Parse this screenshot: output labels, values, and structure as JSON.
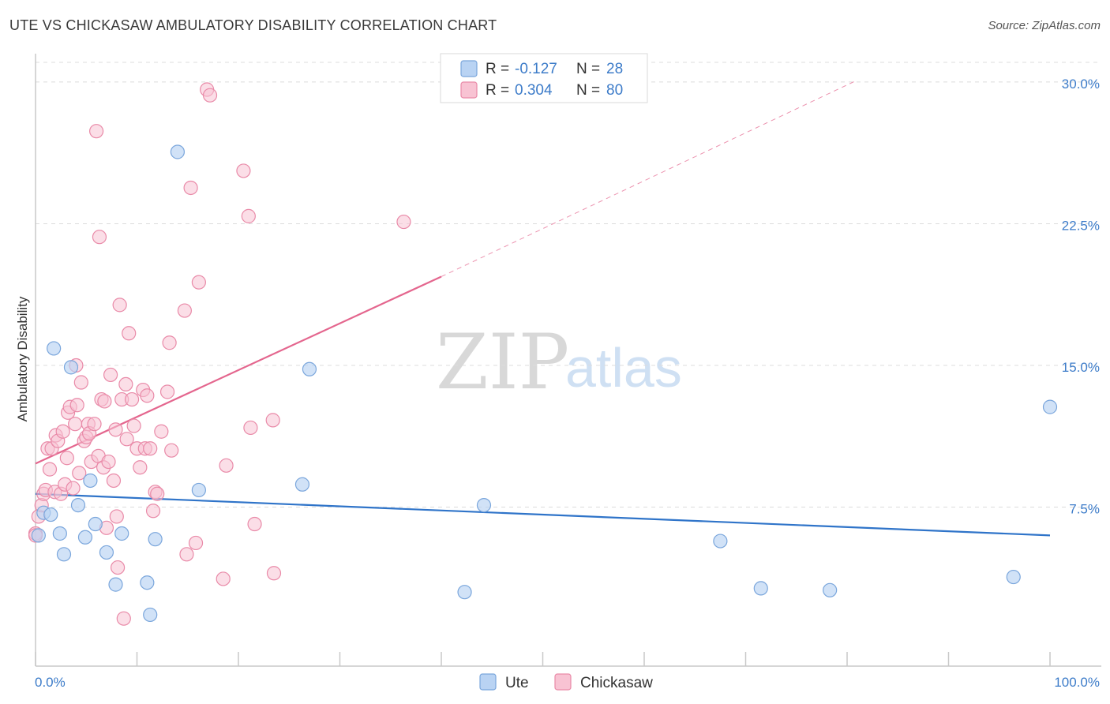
{
  "title": "UTE VS CHICKASAW AMBULATORY DISABILITY CORRELATION CHART",
  "source": "Source: ZipAtlas.com",
  "watermark": {
    "zip": "ZIP",
    "atlas": "atlas"
  },
  "legend": {
    "r_label": "R =",
    "n_label": "N =",
    "entries": [
      {
        "name": "Ute",
        "r": "-0.127",
        "n": "28"
      },
      {
        "name": "Chickasaw",
        "r": "0.304",
        "n": "80"
      }
    ]
  },
  "colors": {
    "ute_fill": "#b9d3f3",
    "ute_stroke": "#7aa6dc",
    "ute_line": "#2f74c9",
    "chickasaw_fill": "#f8c3d3",
    "chickasaw_stroke": "#e98aa8",
    "chickasaw_line": "#e4668e",
    "grid": "#dcdcdc",
    "axis": "#c8c8c8"
  },
  "chart_data": {
    "type": "scatter",
    "title": "UTE VS CHICKASAW AMBULATORY DISABILITY CORRELATION CHART",
    "xlabel": "",
    "ylabel": "Ambulatory Disability",
    "xlim": [
      0,
      100
    ],
    "ylim": [
      0,
      31
    ],
    "x_tick_labels": [
      {
        "value": 0,
        "label": "0.0%"
      },
      {
        "value": 100,
        "label": "100.0%"
      }
    ],
    "y_ticks": [
      {
        "value": 7.5,
        "label": "7.5%"
      },
      {
        "value": 15.0,
        "label": "15.0%"
      },
      {
        "value": 22.5,
        "label": "22.5%"
      },
      {
        "value": 30.0,
        "label": "30.0%"
      }
    ],
    "series": [
      {
        "name": "Ute",
        "trend": {
          "x0": 0,
          "y0": 8.2,
          "x1": 100,
          "y1": 6.0
        },
        "points": [
          [
            0.3,
            6.0
          ],
          [
            0.8,
            7.2
          ],
          [
            1.5,
            7.1
          ],
          [
            1.8,
            15.9
          ],
          [
            2.4,
            6.1
          ],
          [
            2.8,
            5.0
          ],
          [
            3.5,
            14.9
          ],
          [
            4.2,
            7.6
          ],
          [
            4.9,
            5.9
          ],
          [
            5.4,
            8.9
          ],
          [
            5.9,
            6.6
          ],
          [
            7.0,
            5.1
          ],
          [
            7.9,
            3.4
          ],
          [
            8.5,
            6.1
          ],
          [
            11.0,
            3.5
          ],
          [
            11.3,
            1.8
          ],
          [
            11.8,
            5.8
          ],
          [
            14.0,
            26.3
          ],
          [
            16.1,
            8.4
          ],
          [
            26.3,
            8.7
          ],
          [
            27.0,
            14.8
          ],
          [
            42.3,
            3.0
          ],
          [
            44.2,
            7.6
          ],
          [
            67.5,
            5.7
          ],
          [
            71.5,
            3.2
          ],
          [
            78.3,
            3.1
          ],
          [
            96.4,
            3.8
          ],
          [
            100.0,
            12.8
          ]
        ]
      },
      {
        "name": "Chickasaw",
        "trend": {
          "x0": 0,
          "y0": 9.8,
          "x1": 40,
          "y1": 19.7,
          "dash_to_x": 81,
          "dash_to_y": 30.1
        },
        "points": [
          [
            0.0,
            6.1
          ],
          [
            0.3,
            7.0
          ],
          [
            0.6,
            7.6
          ],
          [
            0.8,
            8.2
          ],
          [
            1.0,
            8.4
          ],
          [
            1.2,
            10.6
          ],
          [
            1.4,
            9.5
          ],
          [
            1.6,
            10.6
          ],
          [
            1.9,
            8.3
          ],
          [
            2.0,
            11.3
          ],
          [
            2.2,
            11.0
          ],
          [
            2.5,
            8.2
          ],
          [
            2.7,
            11.5
          ],
          [
            2.9,
            8.7
          ],
          [
            3.1,
            10.1
          ],
          [
            3.2,
            12.5
          ],
          [
            3.4,
            12.8
          ],
          [
            3.7,
            8.5
          ],
          [
            3.9,
            11.9
          ],
          [
            4.0,
            15.0
          ],
          [
            4.1,
            12.9
          ],
          [
            4.3,
            9.3
          ],
          [
            4.5,
            14.1
          ],
          [
            4.8,
            11.0
          ],
          [
            5.0,
            11.2
          ],
          [
            5.2,
            11.9
          ],
          [
            5.3,
            11.4
          ],
          [
            5.5,
            9.9
          ],
          [
            5.8,
            11.9
          ],
          [
            6.0,
            27.4
          ],
          [
            6.2,
            10.2
          ],
          [
            6.3,
            21.8
          ],
          [
            6.5,
            13.2
          ],
          [
            6.7,
            9.6
          ],
          [
            6.8,
            13.1
          ],
          [
            7.0,
            6.4
          ],
          [
            7.2,
            9.9
          ],
          [
            7.4,
            14.5
          ],
          [
            7.7,
            8.9
          ],
          [
            7.9,
            11.6
          ],
          [
            8.0,
            7.0
          ],
          [
            8.1,
            4.3
          ],
          [
            8.3,
            18.2
          ],
          [
            8.5,
            13.2
          ],
          [
            8.7,
            1.6
          ],
          [
            8.9,
            14.0
          ],
          [
            9.0,
            11.1
          ],
          [
            9.2,
            16.7
          ],
          [
            9.5,
            13.2
          ],
          [
            9.7,
            11.8
          ],
          [
            10.0,
            10.6
          ],
          [
            10.3,
            9.6
          ],
          [
            10.6,
            13.7
          ],
          [
            10.8,
            10.6
          ],
          [
            11.0,
            13.4
          ],
          [
            11.3,
            10.6
          ],
          [
            11.6,
            7.3
          ],
          [
            11.8,
            8.3
          ],
          [
            12.0,
            8.2
          ],
          [
            12.4,
            11.5
          ],
          [
            13.0,
            13.6
          ],
          [
            13.2,
            16.2
          ],
          [
            13.4,
            10.5
          ],
          [
            14.7,
            17.9
          ],
          [
            14.9,
            5.0
          ],
          [
            15.3,
            24.4
          ],
          [
            15.8,
            5.6
          ],
          [
            16.1,
            19.4
          ],
          [
            16.9,
            29.6
          ],
          [
            17.2,
            29.3
          ],
          [
            18.5,
            3.7
          ],
          [
            18.8,
            9.7
          ],
          [
            20.5,
            25.3
          ],
          [
            21.0,
            22.9
          ],
          [
            21.2,
            11.7
          ],
          [
            21.6,
            6.6
          ],
          [
            23.4,
            12.1
          ],
          [
            23.5,
            4.0
          ],
          [
            36.3,
            22.6
          ],
          [
            0.0,
            6.0
          ]
        ]
      }
    ]
  }
}
